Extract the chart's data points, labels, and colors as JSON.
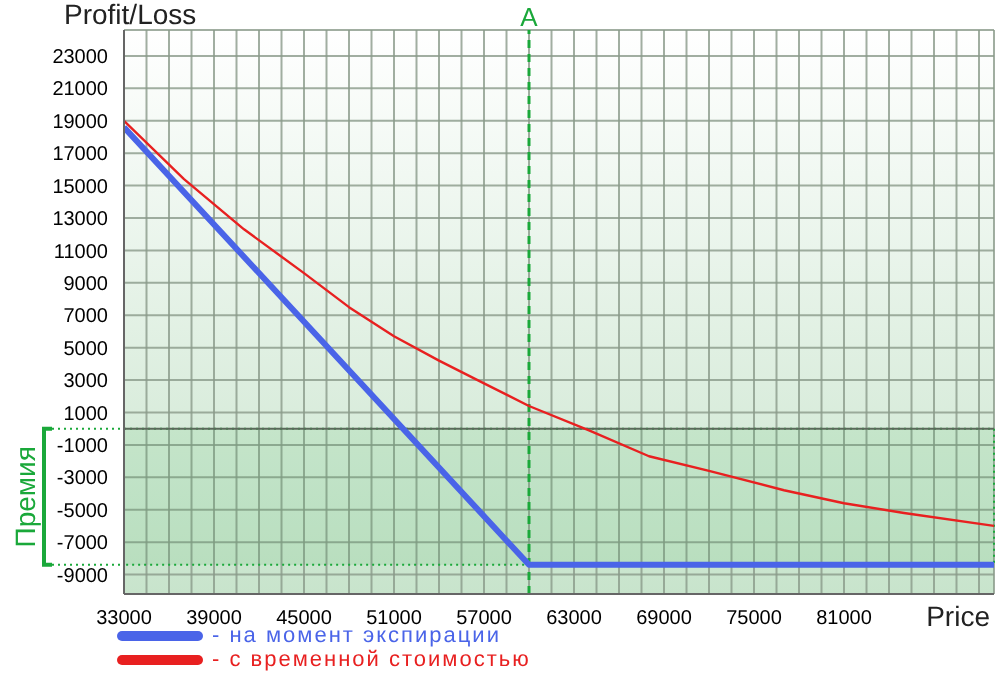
{
  "chart_data": {
    "type": "line",
    "ylabel": "Profit/Loss",
    "xlabel": "Price",
    "xlim": [
      33000,
      91000
    ],
    "ylim": [
      -10200,
      24600
    ],
    "xticks": [
      33000,
      {
        "value": 34500,
        "label": null
      },
      {
        "value": 36000,
        "label": null
      },
      {
        "value": 37500,
        "label": null
      },
      39000,
      {
        "value": 40500,
        "label": null
      },
      {
        "value": 42000,
        "label": null
      },
      {
        "value": 43500,
        "label": null
      },
      45000,
      {
        "value": 46500,
        "label": null
      },
      {
        "value": 48000,
        "label": null
      },
      {
        "value": 49500,
        "label": null
      },
      51000,
      {
        "value": 52500,
        "label": null
      },
      {
        "value": 54000,
        "label": null
      },
      {
        "value": 55500,
        "label": null
      },
      57000,
      {
        "value": 58500,
        "label": null
      },
      {
        "value": 60000,
        "label": null
      },
      {
        "value": 61500,
        "label": null
      },
      63000,
      {
        "value": 64500,
        "label": null
      },
      {
        "value": 66000,
        "label": null
      },
      {
        "value": 67500,
        "label": null
      },
      69000,
      {
        "value": 70500,
        "label": null
      },
      {
        "value": 72000,
        "label": null
      },
      {
        "value": 73500,
        "label": null
      },
      75000,
      {
        "value": 76500,
        "label": null
      },
      {
        "value": 78000,
        "label": null
      },
      {
        "value": 79500,
        "label": null
      },
      81000,
      {
        "value": 82500,
        "label": null
      },
      {
        "value": 84000,
        "label": null
      },
      {
        "value": 85500,
        "label": null
      },
      {
        "value": 87000,
        "label": null
      },
      {
        "value": 88500,
        "label": null
      },
      {
        "value": 90000,
        "label": null
      }
    ],
    "yticks": [
      -9000,
      -7000,
      -5000,
      -3000,
      -1000,
      1000,
      3000,
      5000,
      7000,
      9000,
      11000,
      13000,
      15000,
      17000,
      19000,
      21000,
      23000
    ],
    "grid": true,
    "legend": "bottom",
    "marker": "none",
    "line_style": "solid",
    "series": [
      {
        "name": "- на момент экспирации",
        "color": "#4a64e8",
        "x": [
          33000,
          60000,
          91000
        ],
        "values": [
          18600,
          -8400,
          -8400
        ]
      },
      {
        "name": "- с временной стоимостью",
        "color": "#e82020",
        "x": [
          33000,
          37000,
          41000,
          45000,
          48000,
          51000,
          54000,
          57000,
          60000,
          64000,
          68000,
          72000,
          77000,
          81000,
          85000,
          91000
        ],
        "values": [
          19000,
          15400,
          12300,
          9600,
          7500,
          5700,
          4200,
          2800,
          1400,
          -100,
          -1700,
          -2600,
          -3800,
          -4600,
          -5200,
          -6000
        ]
      }
    ],
    "ref_lines": [
      {
        "axis": "y",
        "value": 0,
        "color": "#5a6a5a",
        "line_style": "solid"
      },
      {
        "axis": "x",
        "value": 60000,
        "label": "A",
        "color": "#1aa83a",
        "line_style": "dashed"
      }
    ],
    "bands": [
      {
        "axis": "y",
        "from": -8400,
        "to": 0,
        "label": "Премия",
        "color": "#1aa83a"
      }
    ]
  }
}
